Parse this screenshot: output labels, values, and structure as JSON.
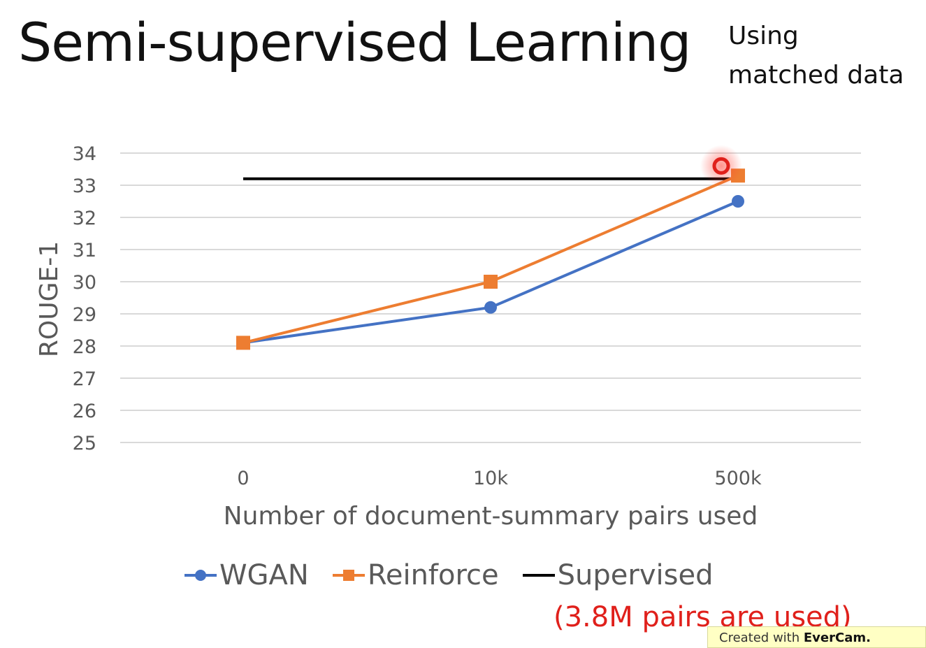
{
  "slide": {
    "title": "Semi-supervised Learning",
    "note_line1": "Using",
    "note_line2": "matched data",
    "red_note": "(3.8M pairs are used)",
    "watermark_prefix": "Created with",
    "watermark_brand": "EverCam."
  },
  "chart_data": {
    "type": "line",
    "title": "",
    "xlabel": "Number of document-summary pairs used",
    "ylabel": "ROUGE-1",
    "categories": [
      "0",
      "10k",
      "500k"
    ],
    "y_ticks": [
      "25",
      "26",
      "27",
      "28",
      "29",
      "30",
      "31",
      "32",
      "33",
      "34"
    ],
    "ylim": [
      25,
      34
    ],
    "grid": true,
    "legend_position": "bottom",
    "series": [
      {
        "name": "WGAN",
        "values": [
          28.1,
          29.2,
          32.5
        ],
        "color": "#4472c4",
        "marker": "circle"
      },
      {
        "name": "Reinforce",
        "values": [
          28.1,
          30.0,
          33.3
        ],
        "color": "#ed7d31",
        "marker": "square"
      }
    ],
    "reference_line": {
      "name": "Supervised",
      "value": 33.2,
      "color": "#000000"
    },
    "cursor_highlight": {
      "x_category": "500k",
      "y": 33.6,
      "color": "#e0201b"
    }
  }
}
